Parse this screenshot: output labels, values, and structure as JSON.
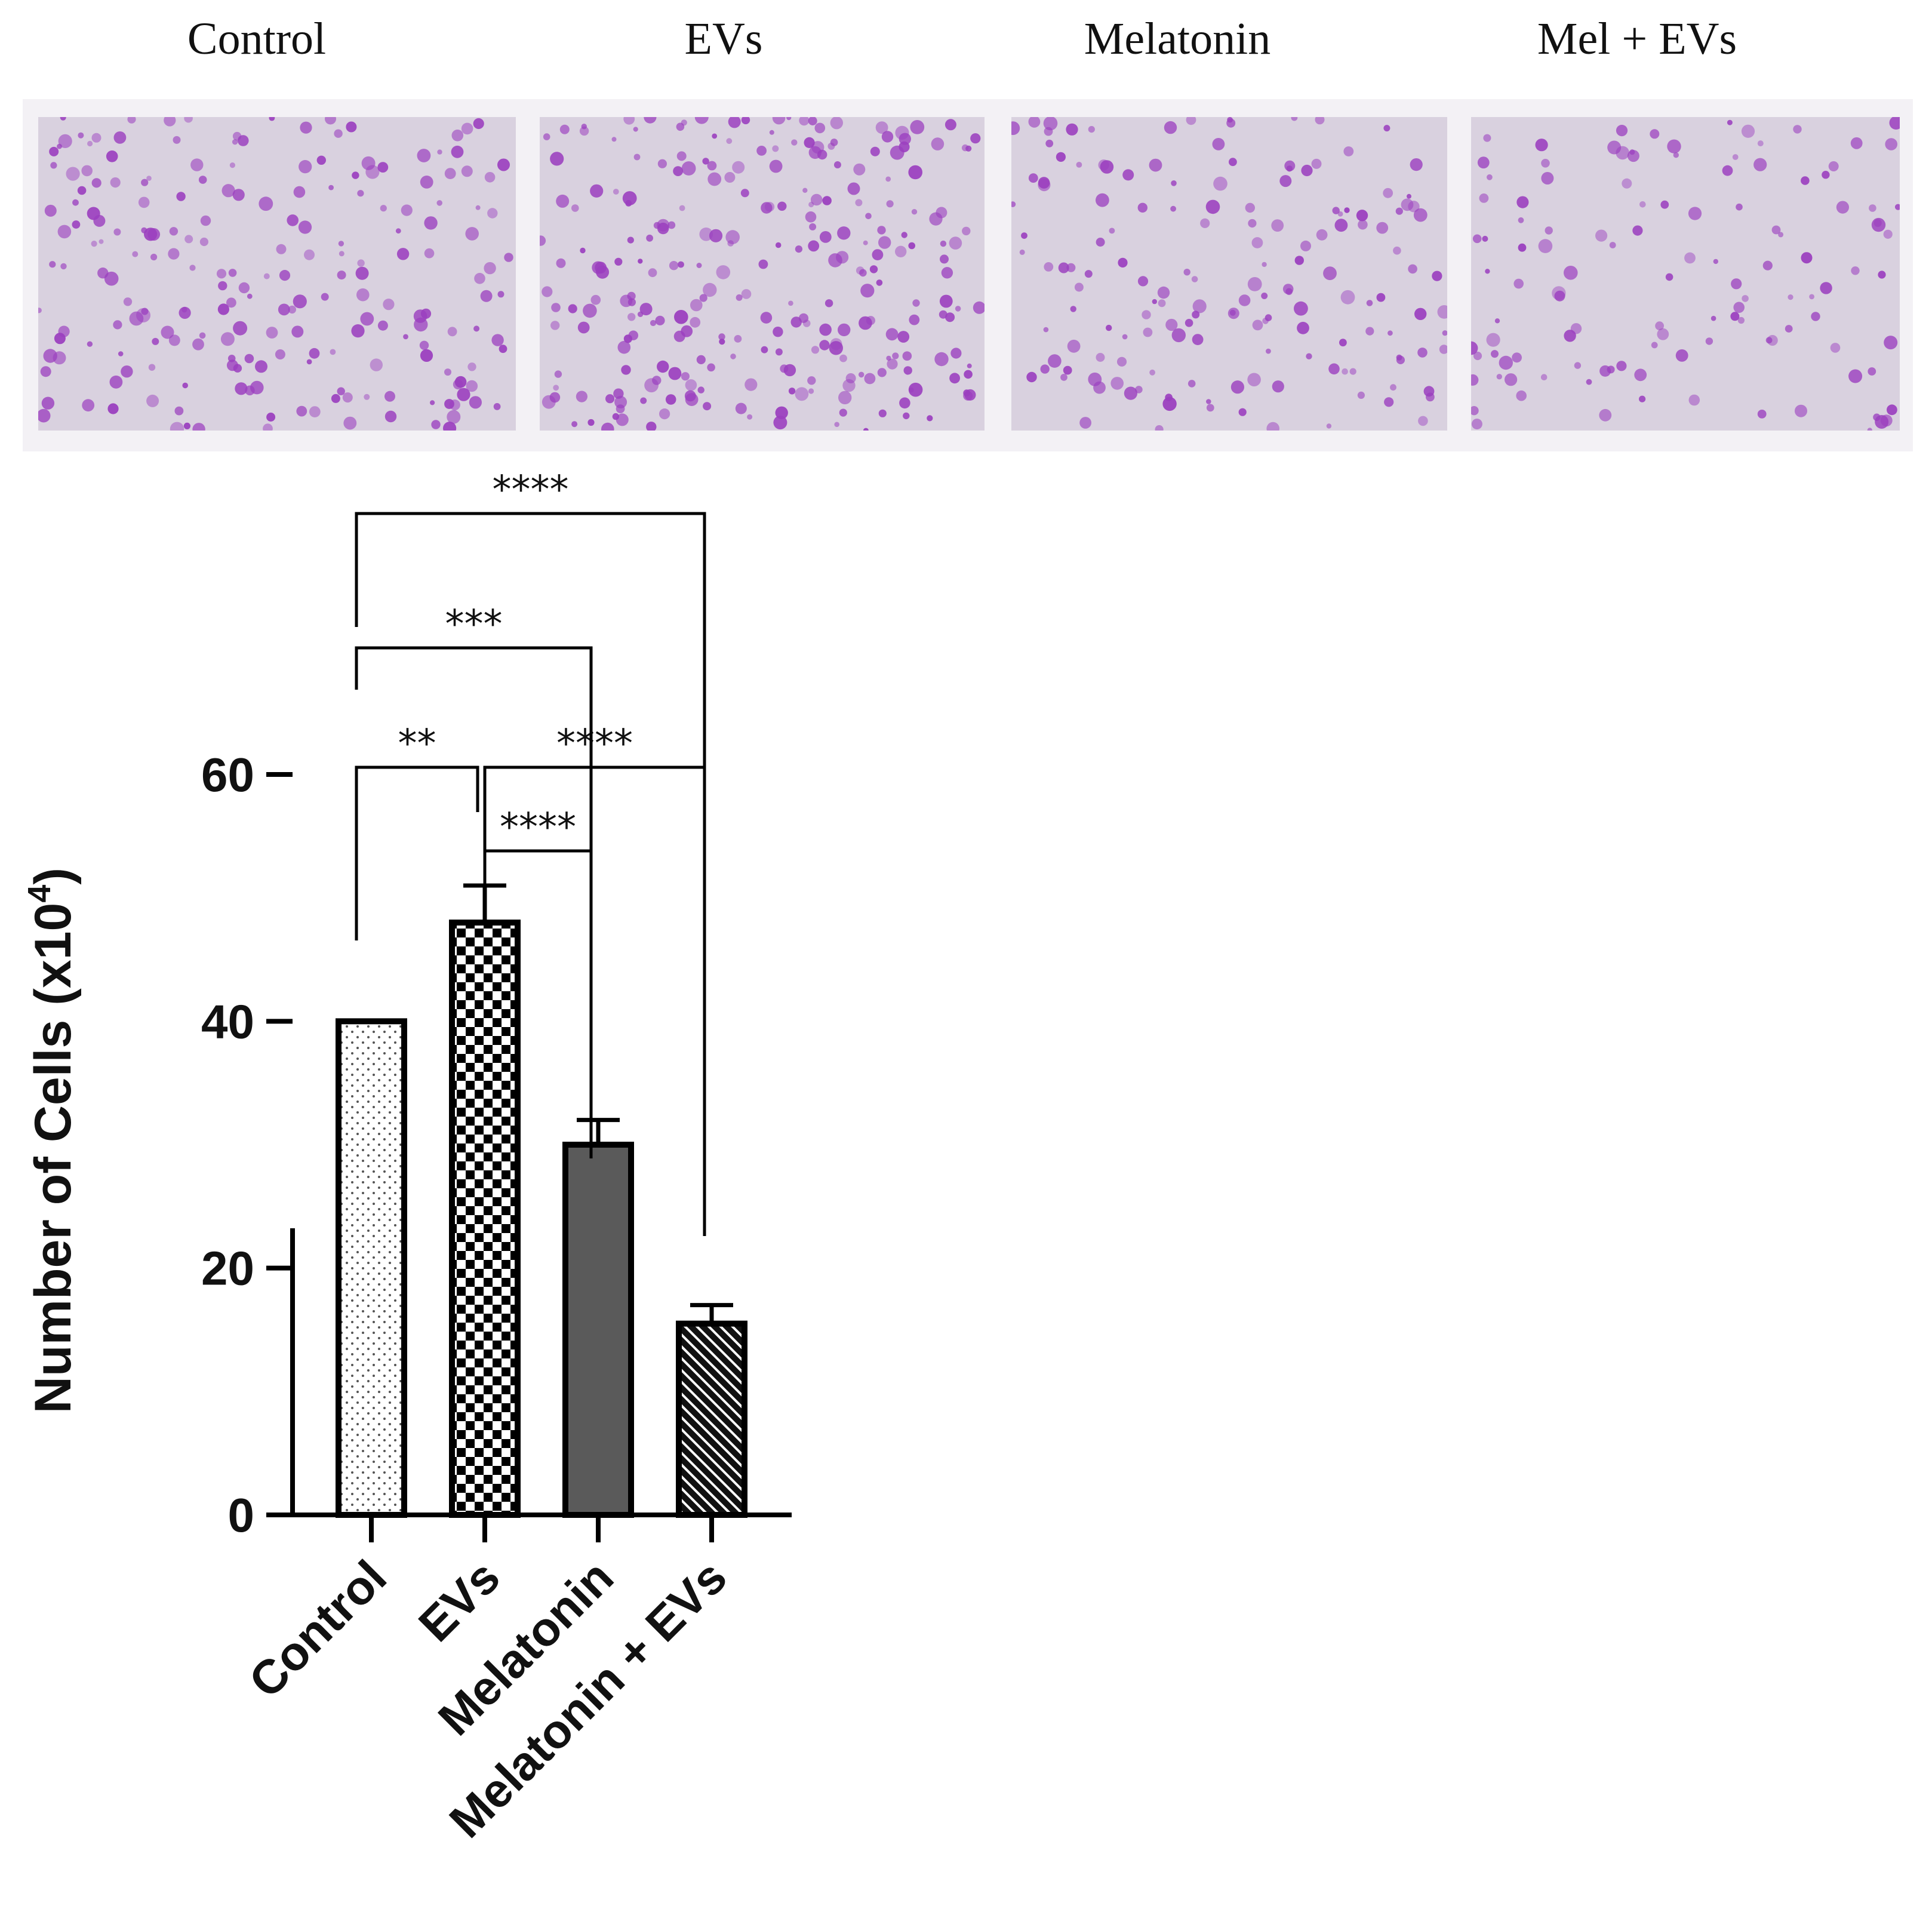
{
  "panels": {
    "labels": [
      "Control",
      "EVs",
      "Melatonin",
      "Mel + EVs"
    ],
    "stain_color": "#9b3fbf",
    "background_color": "#d9d1df",
    "relative_density": [
      0.8,
      1.0,
      0.6,
      0.45
    ]
  },
  "chart_data": {
    "type": "bar",
    "title": "",
    "xlabel": "",
    "ylabel": "Number of Cells (x10",
    "ylabel_superscript": "4",
    "ylabel_close": ")",
    "categories": [
      "Control",
      "EVs",
      "Melatonin",
      "Melatonin + EVs"
    ],
    "values": [
      40,
      48,
      30,
      15.5
    ],
    "error": [
      0,
      3,
      2,
      1.5
    ],
    "ylim": [
      0,
      60
    ],
    "yticks": [
      "0",
      "20",
      "40",
      "60"
    ],
    "fills": [
      "dots",
      "checker",
      "solid-gray",
      "diagonal-hatch"
    ],
    "solid_color": "#5a5a5a",
    "significance": [
      {
        "from": "Control",
        "to": "EVs",
        "label": "**"
      },
      {
        "from": "EVs",
        "to": "Melatonin",
        "label": "****"
      },
      {
        "from": "EVs",
        "to": "Melatonin + EVs",
        "label": "****"
      },
      {
        "from": "Control",
        "to": "Melatonin",
        "label": "***"
      },
      {
        "from": "Control",
        "to": "Melatonin + EVs",
        "label": "****"
      }
    ]
  }
}
